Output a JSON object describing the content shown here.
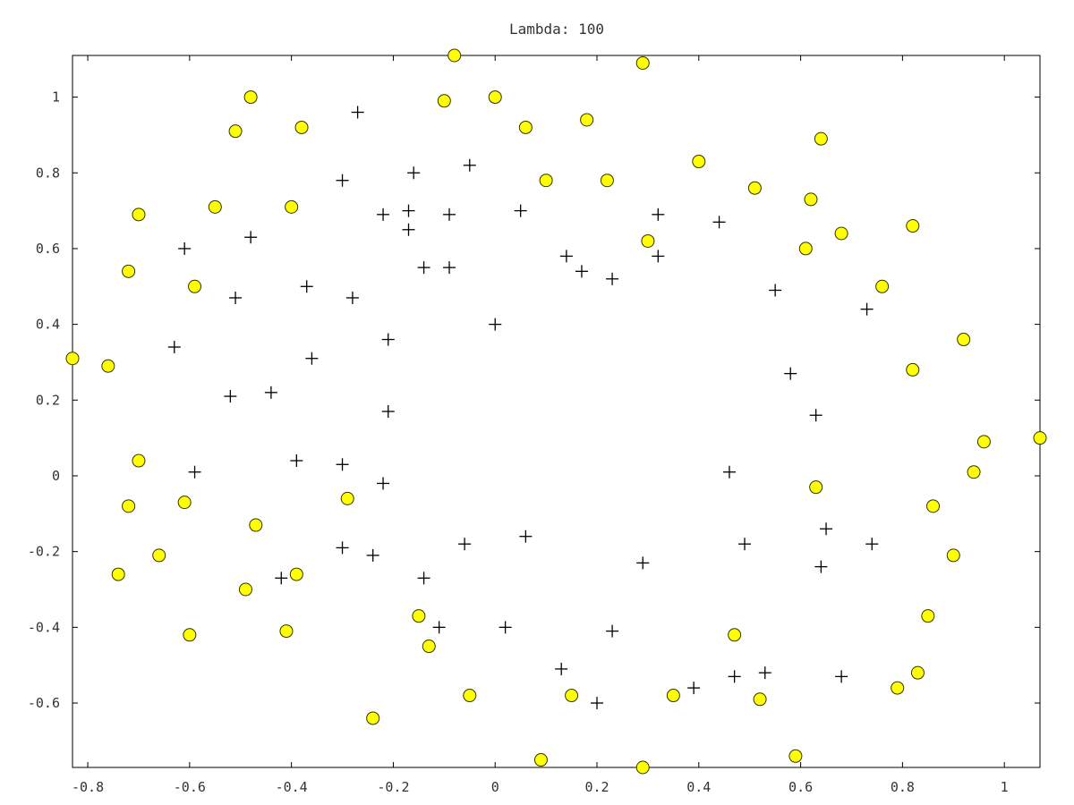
{
  "chart_data": {
    "type": "scatter",
    "title": "Lambda: 100",
    "xlabel": "",
    "ylabel": "",
    "xlim": [
      -0.83,
      1.07
    ],
    "ylim": [
      -0.77,
      1.11
    ],
    "xticks": [
      {
        "value": -0.8,
        "label": "-0.8"
      },
      {
        "value": -0.6,
        "label": "-0.6"
      },
      {
        "value": -0.4,
        "label": "-0.4"
      },
      {
        "value": -0.2,
        "label": "-0.2"
      },
      {
        "value": 0,
        "label": "0"
      },
      {
        "value": 0.2,
        "label": "0.2"
      },
      {
        "value": 0.4,
        "label": "0.4"
      },
      {
        "value": 0.6,
        "label": "0.6"
      },
      {
        "value": 0.8,
        "label": "0.8"
      },
      {
        "value": 1,
        "label": "1"
      }
    ],
    "yticks": [
      {
        "value": -0.6,
        "label": "-0.6"
      },
      {
        "value": -0.4,
        "label": "-0.4"
      },
      {
        "value": -0.2,
        "label": "-0.2"
      },
      {
        "value": 0,
        "label": "0"
      },
      {
        "value": 0.2,
        "label": "0.2"
      },
      {
        "value": 0.4,
        "label": "0.4"
      },
      {
        "value": 0.6,
        "label": "0.6"
      },
      {
        "value": 0.8,
        "label": "0.8"
      },
      {
        "value": 1,
        "label": "1"
      }
    ],
    "grid": false,
    "colors": {
      "circle_fill": "#ffff00",
      "circle_stroke": "#333300",
      "plus": "#000000",
      "axes": "#000000"
    },
    "series": [
      {
        "marker": "plus",
        "points": [
          [
            -0.27,
            0.96
          ],
          [
            -0.16,
            0.8
          ],
          [
            -0.05,
            0.82
          ],
          [
            -0.3,
            0.78
          ],
          [
            -0.22,
            0.69
          ],
          [
            -0.17,
            0.7
          ],
          [
            -0.09,
            0.69
          ],
          [
            0.05,
            0.7
          ],
          [
            -0.17,
            0.65
          ],
          [
            -0.48,
            0.63
          ],
          [
            -0.61,
            0.6
          ],
          [
            -0.14,
            0.55
          ],
          [
            -0.09,
            0.55
          ],
          [
            0.14,
            0.58
          ],
          [
            0.17,
            0.54
          ],
          [
            0.23,
            0.52
          ],
          [
            0.32,
            0.69
          ],
          [
            0.32,
            0.58
          ],
          [
            0.44,
            0.67
          ],
          [
            -0.37,
            0.5
          ],
          [
            -0.51,
            0.47
          ],
          [
            -0.28,
            0.47
          ],
          [
            0.55,
            0.49
          ],
          [
            0.73,
            0.44
          ],
          [
            0.0,
            0.4
          ],
          [
            -0.21,
            0.36
          ],
          [
            -0.63,
            0.34
          ],
          [
            -0.36,
            0.31
          ],
          [
            0.58,
            0.27
          ],
          [
            -0.44,
            0.22
          ],
          [
            -0.52,
            0.21
          ],
          [
            -0.21,
            0.17
          ],
          [
            0.63,
            0.16
          ],
          [
            -0.59,
            0.01
          ],
          [
            -0.39,
            0.04
          ],
          [
            -0.3,
            0.03
          ],
          [
            0.46,
            0.01
          ],
          [
            -0.22,
            -0.02
          ],
          [
            0.06,
            -0.16
          ],
          [
            -0.3,
            -0.19
          ],
          [
            -0.06,
            -0.18
          ],
          [
            0.49,
            -0.18
          ],
          [
            0.65,
            -0.14
          ],
          [
            0.74,
            -0.18
          ],
          [
            -0.24,
            -0.21
          ],
          [
            0.29,
            -0.23
          ],
          [
            0.64,
            -0.24
          ],
          [
            -0.42,
            -0.27
          ],
          [
            -0.14,
            -0.27
          ],
          [
            -0.11,
            -0.4
          ],
          [
            0.02,
            -0.4
          ],
          [
            0.23,
            -0.41
          ],
          [
            0.13,
            -0.51
          ],
          [
            0.53,
            -0.52
          ],
          [
            0.47,
            -0.53
          ],
          [
            0.68,
            -0.53
          ],
          [
            0.39,
            -0.56
          ],
          [
            0.2,
            -0.6
          ]
        ]
      },
      {
        "marker": "circle",
        "points": [
          [
            -0.08,
            1.11
          ],
          [
            0.29,
            1.09
          ],
          [
            -0.48,
            1.0
          ],
          [
            -0.1,
            0.99
          ],
          [
            0.0,
            1.0
          ],
          [
            -0.51,
            0.91
          ],
          [
            -0.38,
            0.92
          ],
          [
            0.06,
            0.92
          ],
          [
            0.18,
            0.94
          ],
          [
            0.64,
            0.89
          ],
          [
            0.4,
            0.83
          ],
          [
            0.51,
            0.76
          ],
          [
            0.62,
            0.73
          ],
          [
            0.1,
            0.78
          ],
          [
            0.22,
            0.78
          ],
          [
            -0.55,
            0.71
          ],
          [
            -0.4,
            0.71
          ],
          [
            -0.7,
            0.69
          ],
          [
            0.82,
            0.66
          ],
          [
            0.68,
            0.64
          ],
          [
            0.3,
            0.62
          ],
          [
            0.61,
            0.6
          ],
          [
            -0.72,
            0.54
          ],
          [
            -0.59,
            0.5
          ],
          [
            0.76,
            0.5
          ],
          [
            0.92,
            0.36
          ],
          [
            -0.83,
            0.31
          ],
          [
            -0.76,
            0.29
          ],
          [
            0.82,
            0.28
          ],
          [
            1.07,
            0.1
          ],
          [
            0.96,
            0.09
          ],
          [
            0.94,
            0.01
          ],
          [
            -0.7,
            0.04
          ],
          [
            0.63,
            -0.03
          ],
          [
            -0.29,
            -0.06
          ],
          [
            -0.61,
            -0.07
          ],
          [
            -0.72,
            -0.08
          ],
          [
            0.86,
            -0.08
          ],
          [
            -0.47,
            -0.13
          ],
          [
            -0.66,
            -0.21
          ],
          [
            0.9,
            -0.21
          ],
          [
            -0.74,
            -0.26
          ],
          [
            -0.39,
            -0.26
          ],
          [
            -0.49,
            -0.3
          ],
          [
            -0.15,
            -0.37
          ],
          [
            0.85,
            -0.37
          ],
          [
            -0.41,
            -0.41
          ],
          [
            -0.6,
            -0.42
          ],
          [
            0.47,
            -0.42
          ],
          [
            -0.13,
            -0.45
          ],
          [
            0.83,
            -0.52
          ],
          [
            0.79,
            -0.56
          ],
          [
            -0.05,
            -0.58
          ],
          [
            0.15,
            -0.58
          ],
          [
            0.35,
            -0.58
          ],
          [
            0.52,
            -0.59
          ],
          [
            -0.24,
            -0.64
          ],
          [
            0.59,
            -0.74
          ],
          [
            0.09,
            -0.75
          ],
          [
            0.29,
            -0.77
          ]
        ]
      }
    ]
  }
}
